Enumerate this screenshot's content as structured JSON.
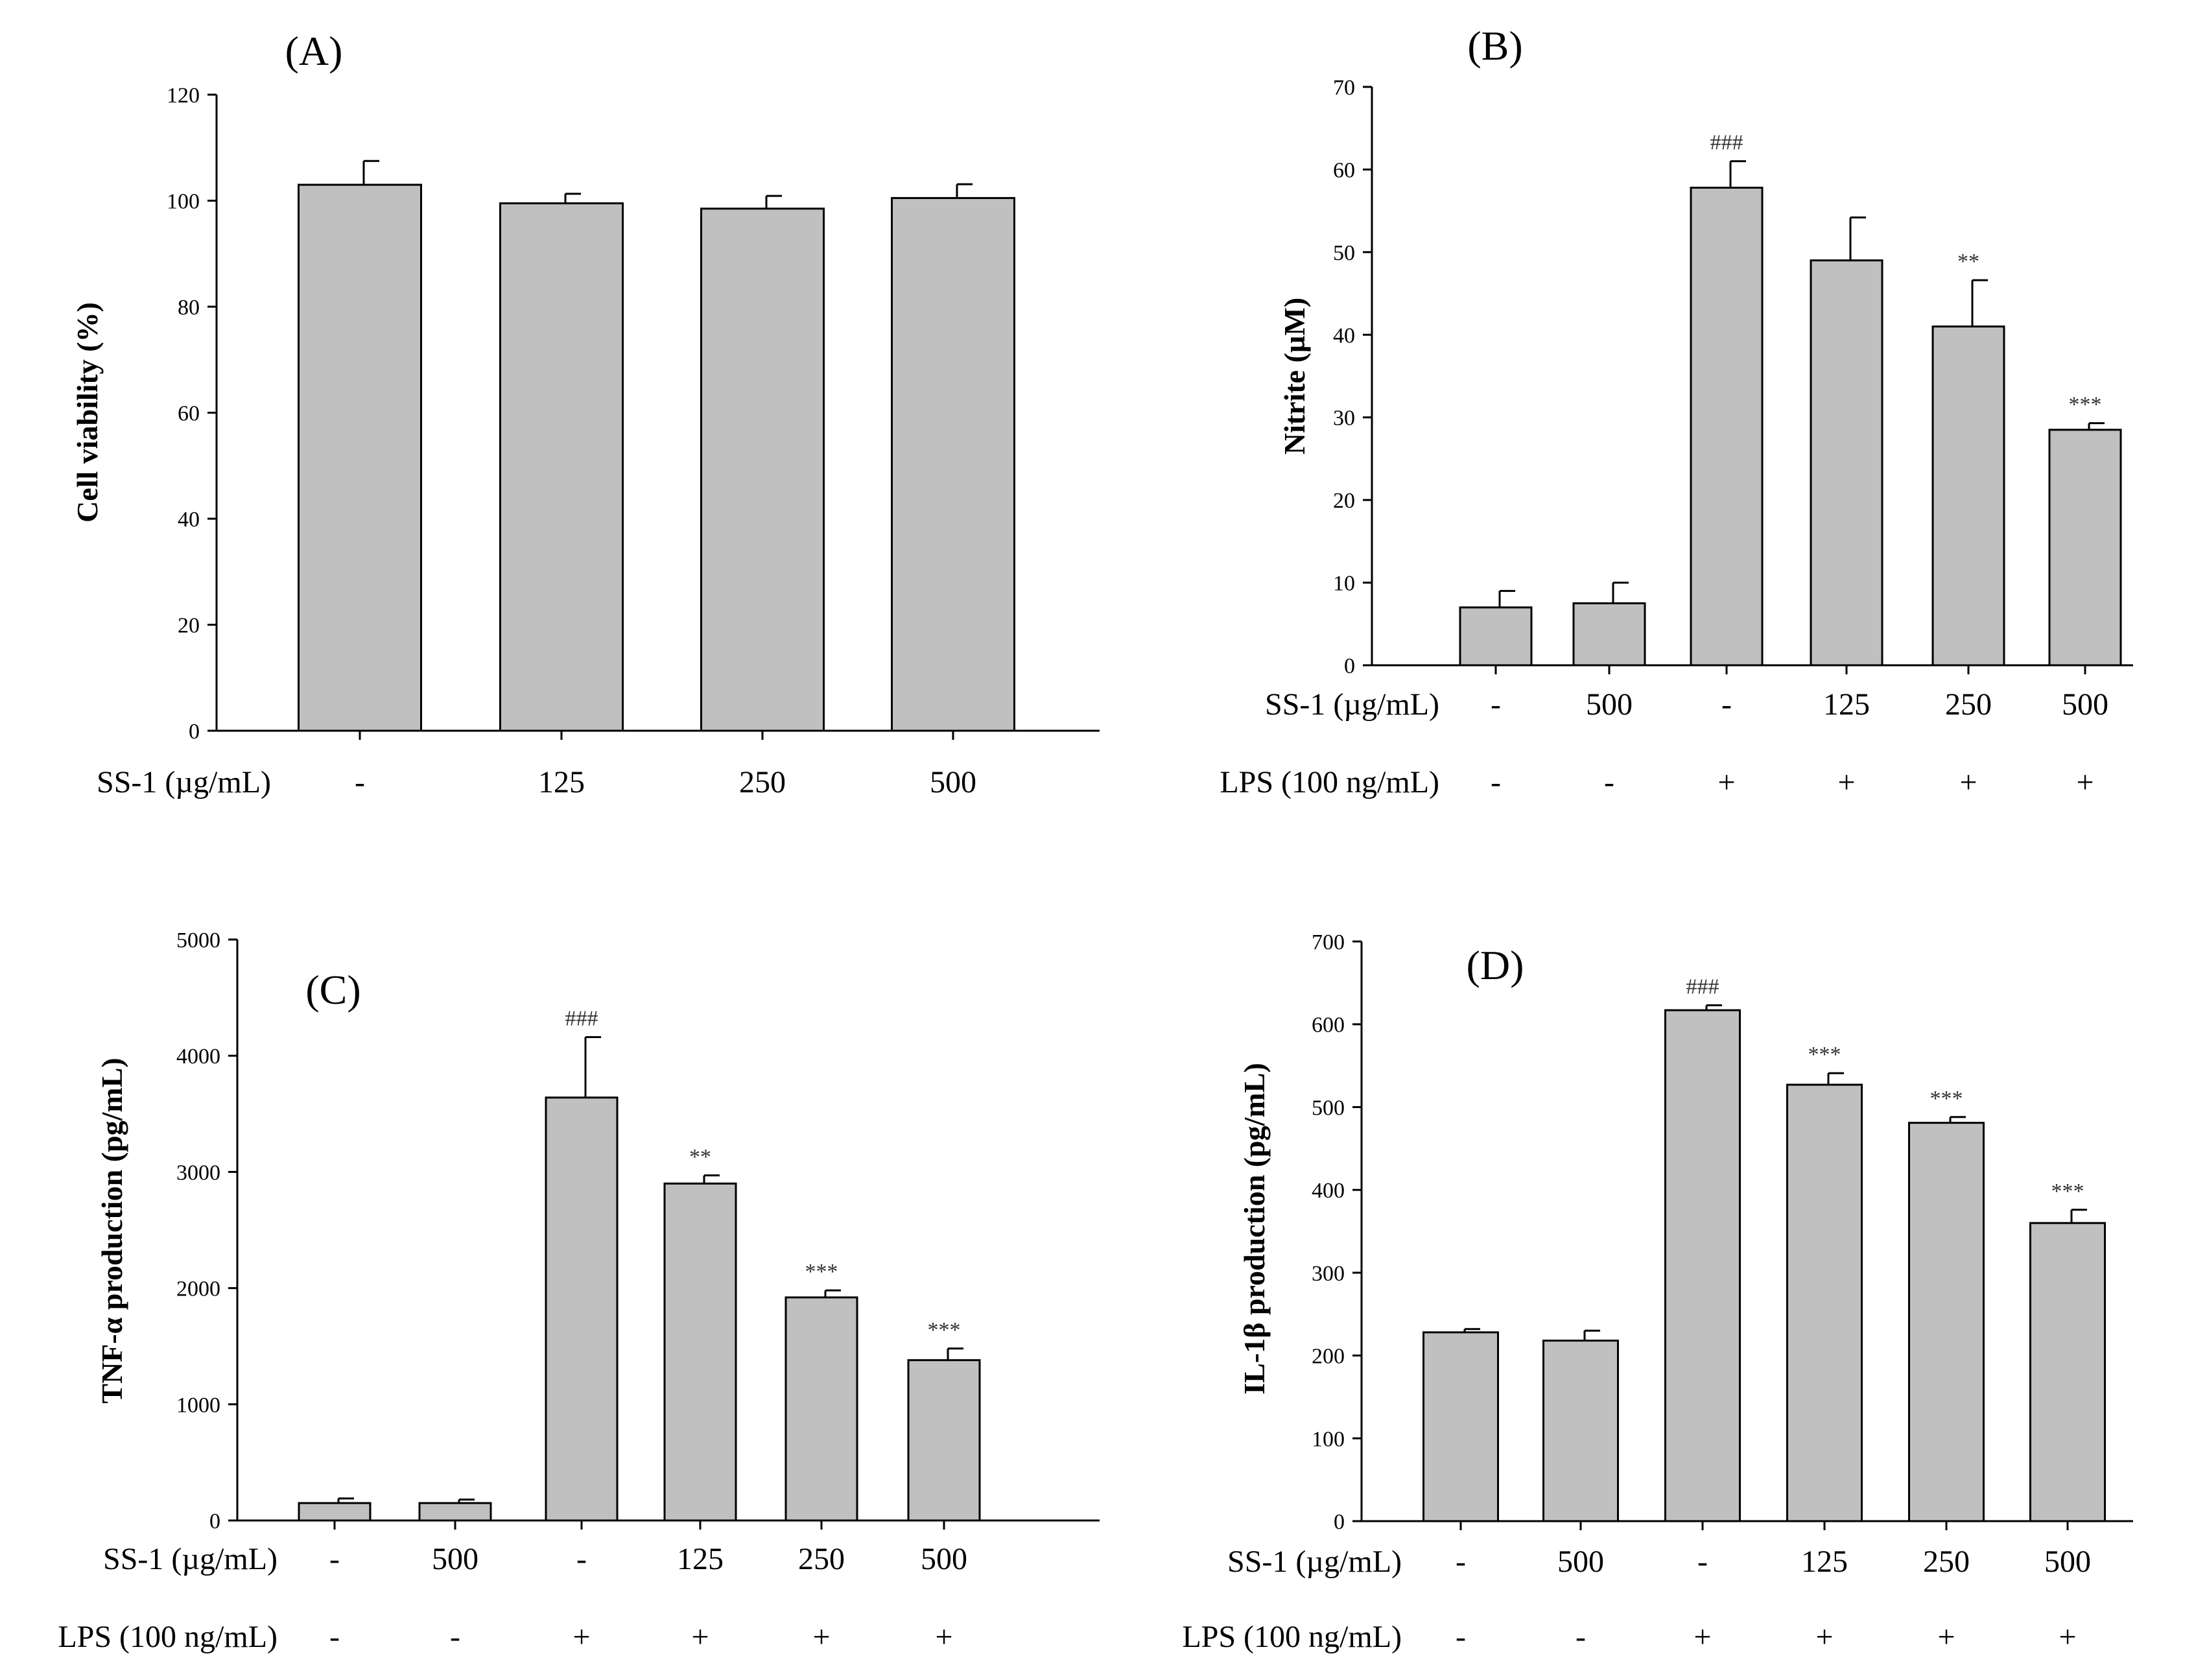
{
  "chart_data": [
    {
      "id": "A",
      "type": "bar",
      "panel_label": "(A)",
      "ylabel": "Cell viability (%)",
      "ylim": [
        0,
        120
      ],
      "yticks": [
        0,
        20,
        40,
        60,
        80,
        100,
        120
      ],
      "values": [
        103,
        99.5,
        98.5,
        100.5
      ],
      "errors": [
        4.5,
        1.8,
        2.4,
        2.6
      ],
      "significance": [
        "",
        "",
        "",
        ""
      ],
      "rows": [
        {
          "label": "SS-1 (µg/mL)",
          "values": [
            "-",
            "125",
            "250",
            "500"
          ]
        }
      ]
    },
    {
      "id": "B",
      "type": "bar",
      "panel_label": "(B)",
      "ylabel": "Nitrite (µM)",
      "ylim": [
        0,
        70
      ],
      "yticks": [
        0,
        10,
        20,
        30,
        40,
        50,
        60,
        70
      ],
      "values": [
        7,
        7.5,
        57.8,
        49,
        41,
        28.5
      ],
      "errors": [
        2,
        2.5,
        3.2,
        5.2,
        5.6,
        0.8
      ],
      "significance": [
        "",
        "",
        "###",
        "",
        "**",
        "***"
      ],
      "rows": [
        {
          "label": "SS-1 (µg/mL)",
          "values": [
            "-",
            "500",
            "-",
            "125",
            "250",
            "500"
          ]
        },
        {
          "label": "LPS (100 ng/mL)",
          "values": [
            "-",
            "-",
            "+",
            "+",
            "+",
            "+"
          ]
        }
      ]
    },
    {
      "id": "C",
      "type": "bar",
      "panel_label": "(C)",
      "ylabel": "TNF-α production (pg/mL)",
      "ylim": [
        0,
        5000
      ],
      "yticks": [
        0,
        1000,
        2000,
        3000,
        4000,
        5000
      ],
      "values": [
        150,
        150,
        3640,
        2900,
        1920,
        1380
      ],
      "errors": [
        40,
        30,
        520,
        70,
        60,
        100
      ],
      "significance": [
        "",
        "",
        "###",
        "**",
        "***",
        "***"
      ],
      "rows": [
        {
          "label": "SS-1 (µg/mL)",
          "values": [
            "-",
            "500",
            "-",
            "125",
            "250",
            "500"
          ]
        },
        {
          "label": "LPS (100 ng/mL)",
          "values": [
            "-",
            "-",
            "+",
            "+",
            "+",
            "+"
          ]
        }
      ]
    },
    {
      "id": "D",
      "type": "bar",
      "panel_label": "(D)",
      "ylabel": "IL-1β production (pg/mL)",
      "ylim": [
        0,
        700
      ],
      "yticks": [
        0,
        100,
        200,
        300,
        400,
        500,
        600,
        700
      ],
      "values": [
        228,
        218,
        617,
        527,
        481,
        360
      ],
      "errors": [
        4,
        12,
        6,
        14,
        7,
        16
      ],
      "significance": [
        "",
        "",
        "###",
        "***",
        "***",
        "***"
      ],
      "rows": [
        {
          "label": "SS-1 (µg/mL)",
          "values": [
            "-",
            "500",
            "-",
            "125",
            "250",
            "500"
          ]
        },
        {
          "label": "LPS (100 ng/mL)",
          "values": [
            "-",
            "-",
            "+",
            "+",
            "+",
            "+"
          ]
        }
      ]
    }
  ],
  "colors": {
    "bar_fill": "#c0c0c0",
    "stroke": "#000000",
    "significance": "#333333"
  }
}
